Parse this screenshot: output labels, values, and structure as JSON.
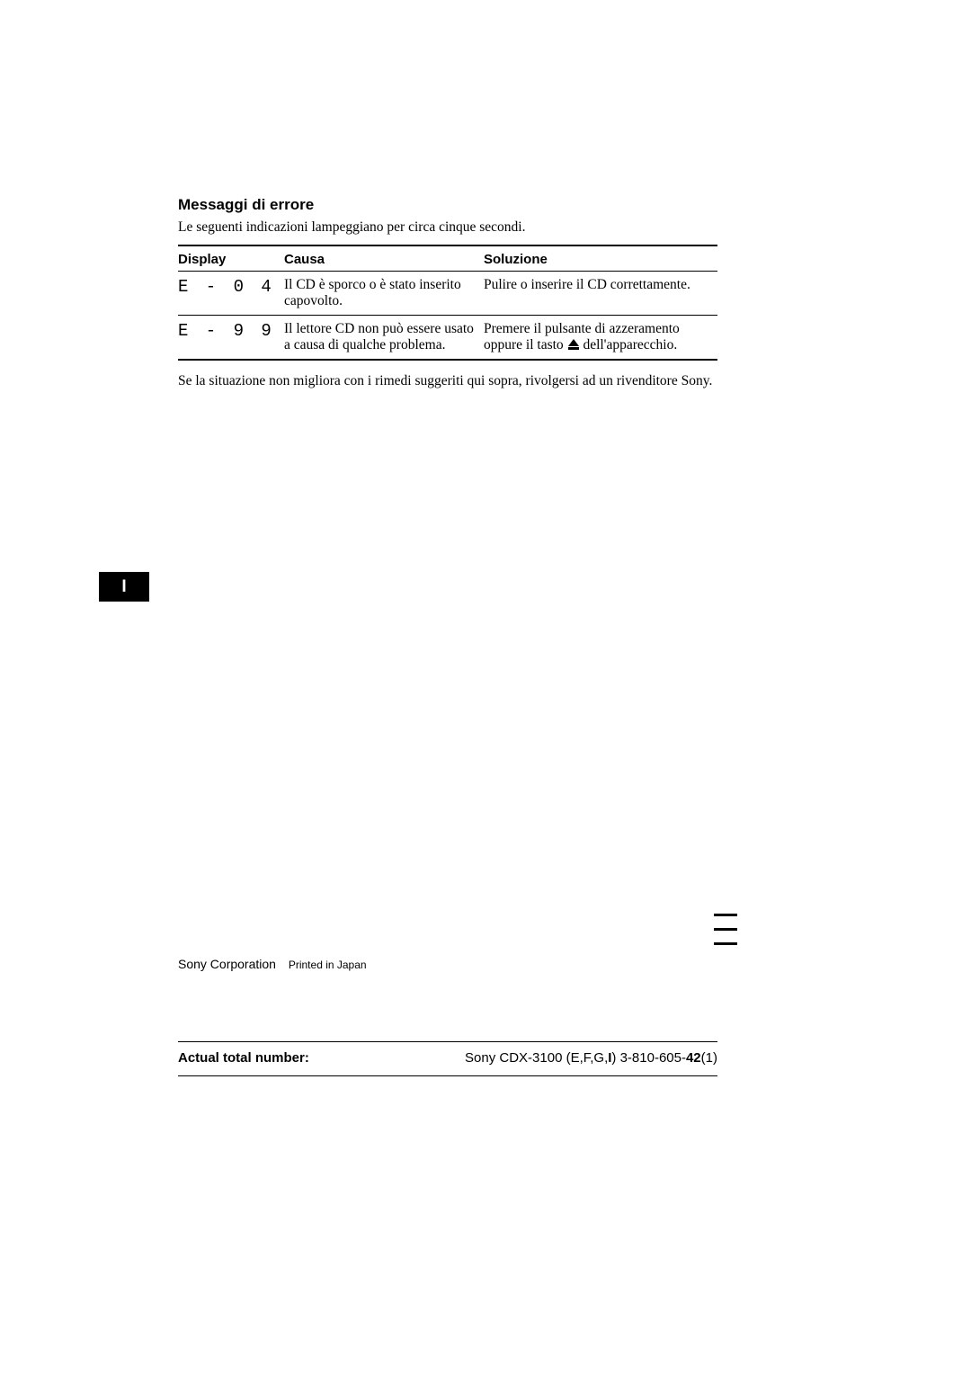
{
  "section": {
    "title": "Messaggi di errore",
    "intro": "Le seguenti indicazioni lampeggiano per circa cinque secondi."
  },
  "table": {
    "headers": {
      "display": "Display",
      "cause": "Causa",
      "solution": "Soluzione"
    },
    "rows": [
      {
        "code": "E - 0 4",
        "cause": "Il CD è sporco o è stato inserito capovolto.",
        "solution": "Pulire o inserire il CD correttamente."
      },
      {
        "code": "E - 9 9",
        "cause": "Il lettore CD non può essere usato a causa di qualche problema.",
        "solution_pre": "Premere il pulsante di azzeramento oppure il tasto ",
        "solution_post": " dell'apparecchio."
      }
    ]
  },
  "footnote": "Se la situazione non migliora con i rimedi suggeriti qui sopra, rivolgersi ad un rivenditore Sony.",
  "side_tab": "I",
  "corp": {
    "name": "Sony Corporation",
    "printed": "Printed in Japan"
  },
  "bottom": {
    "label": "Actual total number:",
    "right_prefix": "Sony CDX-3100 (E,F,G,",
    "right_bold1": "I",
    "right_mid": ") 3-810-605-",
    "right_bold2": "42",
    "right_suffix": "(1)"
  }
}
